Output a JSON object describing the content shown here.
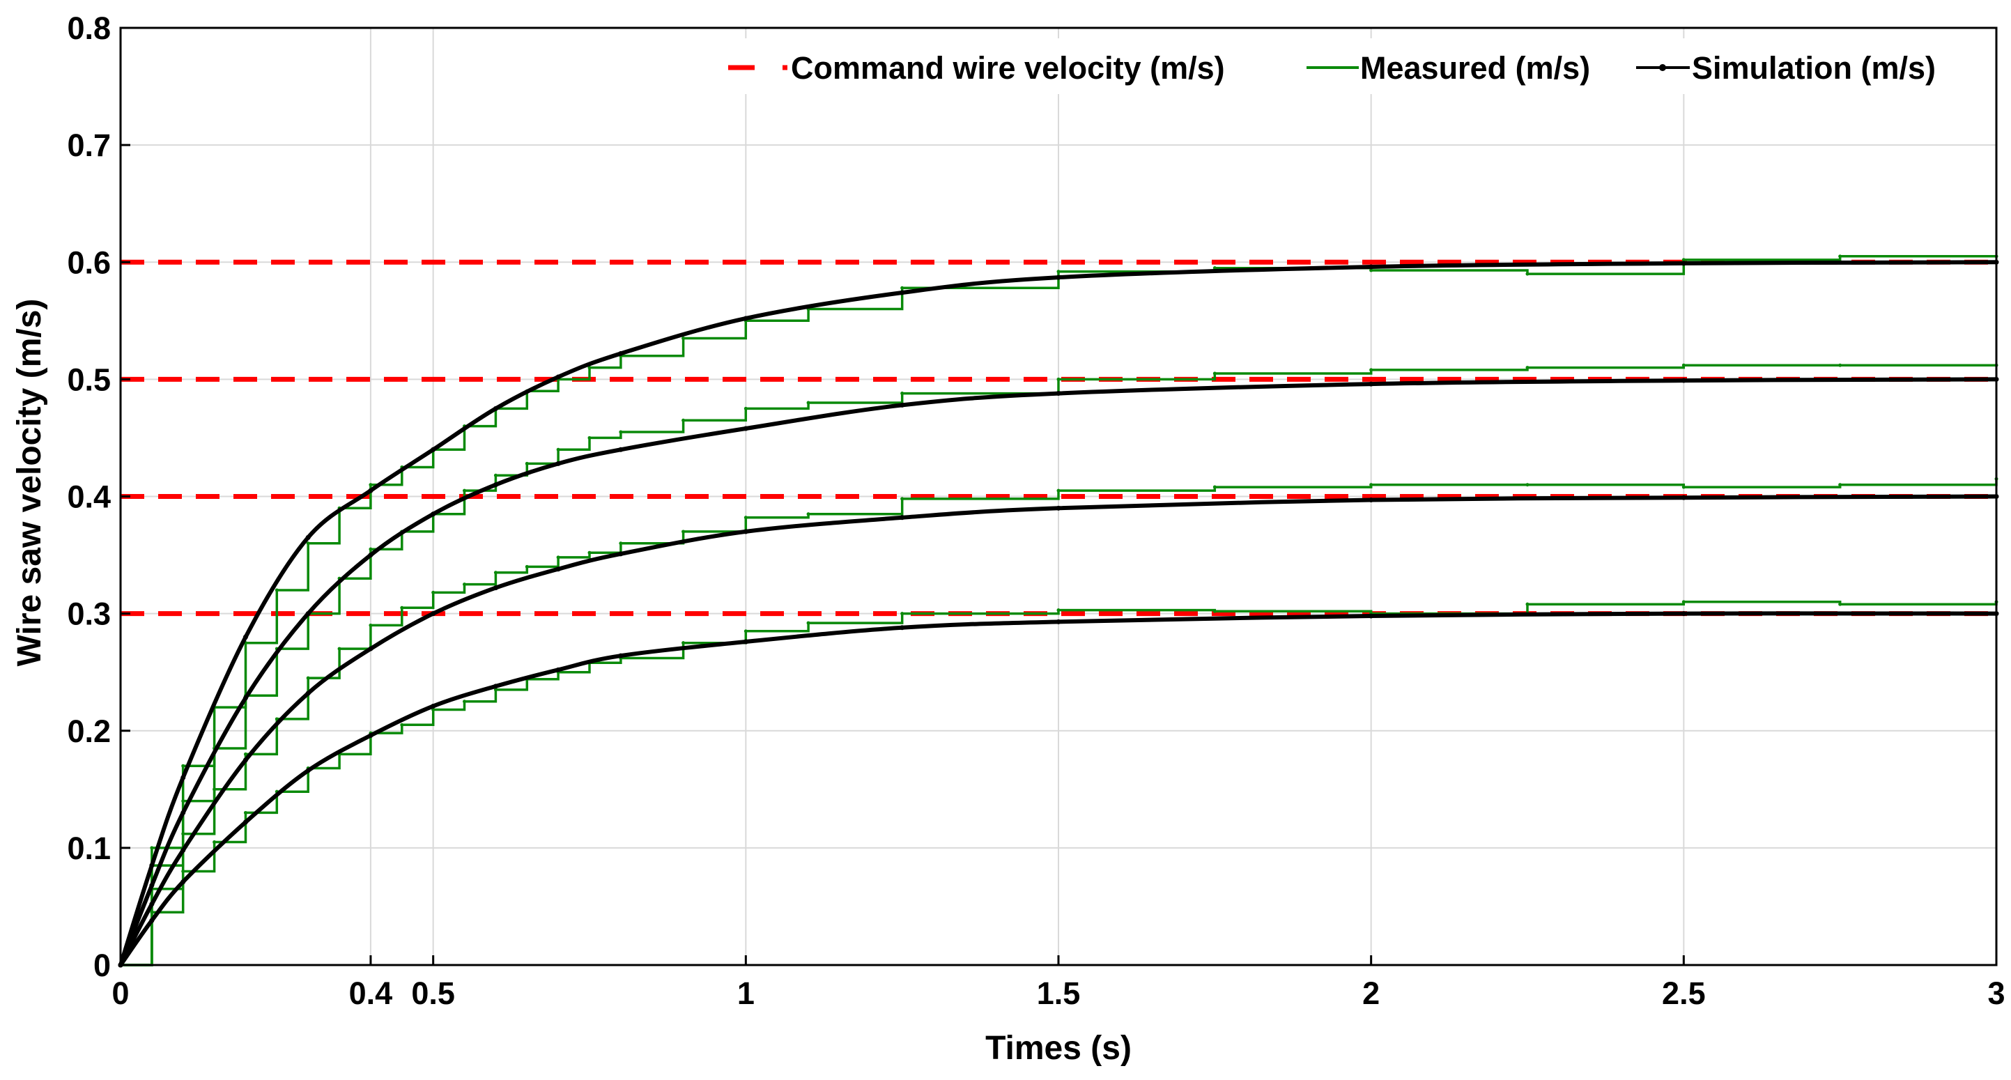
{
  "chart_data": {
    "type": "line",
    "title": "",
    "xlabel": "Times (s)",
    "ylabel": "Wire saw velocity  (m/s)",
    "xlim": [
      0,
      3
    ],
    "ylim": [
      0,
      0.8
    ],
    "grid": true,
    "legend_position": "top-right",
    "x_ticks": [
      0,
      0.4,
      0.5,
      1,
      1.5,
      2,
      2.5,
      3
    ],
    "x_tick_labels": [
      "0",
      "0.4",
      "0.5",
      "1",
      "1.5",
      "2",
      "2.5",
      "3"
    ],
    "y_ticks": [
      0,
      0.1,
      0.2,
      0.3,
      0.4,
      0.5,
      0.6,
      0.7,
      0.8
    ],
    "y_tick_labels": [
      "0",
      "0.1",
      "0.2",
      "0.3",
      "0.4",
      "0.5",
      "0.6",
      "0.7",
      "0.8"
    ],
    "colors": {
      "command": "#ff0000",
      "measured": "#0a8a0a",
      "simulation": "#000000",
      "grid": "#d9d9d9"
    },
    "legend": [
      {
        "key": "command",
        "label": "Command wire velocity (m/s)"
      },
      {
        "key": "measured",
        "label": "Measured (m/s)"
      },
      {
        "key": "simulation",
        "label": "Simulation (m/s)"
      }
    ],
    "series": [
      {
        "name": "Command 0.3",
        "kind": "command",
        "x": [
          0,
          3
        ],
        "y": [
          0.3,
          0.3
        ]
      },
      {
        "name": "Command 0.4",
        "kind": "command",
        "x": [
          0,
          3
        ],
        "y": [
          0.4,
          0.4
        ]
      },
      {
        "name": "Command 0.5",
        "kind": "command",
        "x": [
          0,
          3
        ],
        "y": [
          0.5,
          0.5
        ]
      },
      {
        "name": "Command 0.6",
        "kind": "command",
        "x": [
          0,
          3
        ],
        "y": [
          0.6,
          0.6
        ]
      },
      {
        "name": "Simulation 0.3",
        "kind": "simulation",
        "x": [
          0,
          0.05,
          0.1,
          0.2,
          0.3,
          0.4,
          0.5,
          0.6,
          0.7,
          0.8,
          1.0,
          1.25,
          1.5,
          2.0,
          2.5,
          3.0
        ],
        "y": [
          0,
          0.038,
          0.071,
          0.122,
          0.166,
          0.196,
          0.221,
          0.238,
          0.252,
          0.264,
          0.276,
          0.288,
          0.293,
          0.298,
          0.3,
          0.3
        ]
      },
      {
        "name": "Simulation 0.4",
        "kind": "simulation",
        "x": [
          0,
          0.05,
          0.1,
          0.2,
          0.3,
          0.4,
          0.5,
          0.6,
          0.7,
          0.8,
          1.0,
          1.25,
          1.5,
          2.0,
          2.5,
          3.0
        ],
        "y": [
          0,
          0.052,
          0.098,
          0.175,
          0.232,
          0.27,
          0.3,
          0.322,
          0.338,
          0.351,
          0.37,
          0.382,
          0.39,
          0.397,
          0.399,
          0.4
        ]
      },
      {
        "name": "Simulation 0.5",
        "kind": "simulation",
        "x": [
          0,
          0.05,
          0.1,
          0.2,
          0.3,
          0.4,
          0.5,
          0.6,
          0.7,
          0.8,
          1.0,
          1.25,
          1.5,
          2.0,
          2.5,
          3.0
        ],
        "y": [
          0,
          0.068,
          0.13,
          0.228,
          0.3,
          0.35,
          0.385,
          0.41,
          0.428,
          0.44,
          0.458,
          0.478,
          0.488,
          0.496,
          0.499,
          0.5
        ]
      },
      {
        "name": "Simulation 0.6",
        "kind": "simulation",
        "x": [
          0,
          0.05,
          0.1,
          0.2,
          0.3,
          0.4,
          0.5,
          0.6,
          0.7,
          0.8,
          1.0,
          1.25,
          1.5,
          2.0,
          2.5,
          3.0
        ],
        "y": [
          0,
          0.085,
          0.16,
          0.28,
          0.365,
          0.405,
          0.44,
          0.475,
          0.502,
          0.522,
          0.552,
          0.574,
          0.587,
          0.596,
          0.599,
          0.6
        ]
      },
      {
        "name": "Measured 0.3",
        "kind": "measured",
        "x": [
          0,
          0.05,
          0.1,
          0.15,
          0.2,
          0.25,
          0.3,
          0.35,
          0.4,
          0.45,
          0.5,
          0.55,
          0.6,
          0.65,
          0.7,
          0.75,
          0.8,
          0.9,
          1.0,
          1.1,
          1.25,
          1.5,
          1.75,
          2.0,
          2.25,
          2.5,
          2.75,
          3.0
        ],
        "y": [
          0,
          0.045,
          0.08,
          0.105,
          0.13,
          0.148,
          0.168,
          0.18,
          0.198,
          0.205,
          0.218,
          0.225,
          0.235,
          0.244,
          0.25,
          0.258,
          0.262,
          0.275,
          0.285,
          0.292,
          0.3,
          0.303,
          0.302,
          0.3,
          0.308,
          0.31,
          0.308,
          0.31
        ]
      },
      {
        "name": "Measured 0.4",
        "kind": "measured",
        "x": [
          0,
          0.05,
          0.1,
          0.15,
          0.2,
          0.25,
          0.3,
          0.35,
          0.4,
          0.45,
          0.5,
          0.55,
          0.6,
          0.65,
          0.7,
          0.75,
          0.8,
          0.9,
          1.0,
          1.1,
          1.25,
          1.5,
          1.75,
          2.0,
          2.25,
          2.5,
          2.75,
          3.0
        ],
        "y": [
          0,
          0.065,
          0.112,
          0.15,
          0.18,
          0.21,
          0.245,
          0.27,
          0.29,
          0.305,
          0.318,
          0.325,
          0.335,
          0.34,
          0.348,
          0.352,
          0.36,
          0.37,
          0.382,
          0.385,
          0.398,
          0.405,
          0.408,
          0.41,
          0.41,
          0.408,
          0.41,
          0.415
        ]
      },
      {
        "name": "Measured 0.5",
        "kind": "measured",
        "x": [
          0,
          0.05,
          0.1,
          0.15,
          0.2,
          0.25,
          0.3,
          0.35,
          0.4,
          0.45,
          0.5,
          0.55,
          0.6,
          0.65,
          0.7,
          0.75,
          0.8,
          0.9,
          1.0,
          1.1,
          1.25,
          1.5,
          1.75,
          2.0,
          2.25,
          2.5,
          2.75,
          3.0
        ],
        "y": [
          0,
          0.085,
          0.14,
          0.185,
          0.23,
          0.27,
          0.3,
          0.33,
          0.355,
          0.37,
          0.385,
          0.405,
          0.418,
          0.428,
          0.44,
          0.45,
          0.455,
          0.465,
          0.475,
          0.48,
          0.488,
          0.5,
          0.505,
          0.508,
          0.51,
          0.512,
          0.512,
          0.512
        ]
      },
      {
        "name": "Measured 0.6",
        "kind": "measured",
        "x": [
          0,
          0.05,
          0.1,
          0.15,
          0.2,
          0.25,
          0.3,
          0.35,
          0.4,
          0.45,
          0.5,
          0.55,
          0.6,
          0.65,
          0.7,
          0.75,
          0.8,
          0.9,
          1.0,
          1.1,
          1.25,
          1.5,
          1.75,
          2.0,
          2.25,
          2.5,
          2.75,
          3.0
        ],
        "y": [
          0,
          0.1,
          0.17,
          0.22,
          0.275,
          0.32,
          0.36,
          0.39,
          0.41,
          0.425,
          0.44,
          0.46,
          0.475,
          0.49,
          0.5,
          0.51,
          0.52,
          0.535,
          0.55,
          0.56,
          0.578,
          0.592,
          0.595,
          0.593,
          0.59,
          0.602,
          0.605,
          0.605
        ]
      }
    ]
  }
}
